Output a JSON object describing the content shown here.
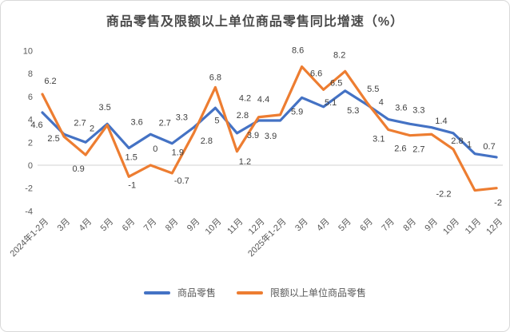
{
  "chart_data": {
    "type": "line",
    "title": "商品零售及限额以上单位商品零售同比增速（%）",
    "categories": [
      "2024年1-2月",
      "3月",
      "4月",
      "5月",
      "6月",
      "7月",
      "8月",
      "9月",
      "10月",
      "11月",
      "12月",
      "2025年1-2月",
      "3月",
      "4月",
      "5月",
      "6月",
      "7月",
      "8月",
      "9月",
      "10月",
      "11月",
      "12月"
    ],
    "series": [
      {
        "name": "商品零售",
        "color": "#4472C4",
        "values": [
          4.6,
          2.7,
          2,
          3.6,
          1.5,
          2.7,
          1.9,
          3.3,
          5,
          2.8,
          3.9,
          3.9,
          5.9,
          5.1,
          6.5,
          5.3,
          4,
          3.6,
          3.3,
          2.8,
          1,
          0.7
        ],
        "label_offsets": [
          [
            -7,
            19
          ],
          [
            20,
            -11
          ],
          [
            8,
            -14
          ],
          [
            37,
            1
          ],
          [
            3,
            15
          ],
          [
            18,
            -11
          ],
          [
            7,
            15
          ],
          [
            -15,
            -9
          ],
          [
            2,
            19
          ],
          [
            7,
            -19
          ],
          [
            -7,
            22
          ],
          [
            -12,
            23
          ],
          [
            -6,
            21
          ],
          [
            9,
            -2
          ],
          [
            -11,
            -6
          ],
          [
            -17,
            11
          ],
          [
            -9,
            -18
          ],
          [
            -11,
            -17
          ],
          [
            -16,
            -18
          ],
          [
            5,
            13
          ],
          [
            -7,
            -8
          ],
          [
            -9,
            -10
          ]
        ]
      },
      {
        "name": "限额以上单位商品零售",
        "color": "#ED7D31",
        "values": [
          6.2,
          2.5,
          0.9,
          3.5,
          -1,
          0,
          -0.7,
          2.8,
          6.8,
          1.2,
          4.2,
          4.4,
          8.6,
          6.6,
          8.2,
          5.5,
          3.1,
          2.6,
          2.7,
          1.4,
          -2.2,
          -2
        ],
        "label_offsets": [
          [
            10,
            -13
          ],
          [
            -13,
            6
          ],
          [
            -9,
            21
          ],
          [
            -3,
            -19
          ],
          [
            4,
            14
          ],
          [
            6,
            -17
          ],
          [
            12,
            13
          ],
          [
            16,
            13
          ],
          [
            0,
            -9
          ],
          [
            10,
            16
          ],
          [
            -17,
            -20
          ],
          [
            -21,
            -16
          ],
          [
            -5,
            -17
          ],
          [
            -9,
            -17
          ],
          [
            -7,
            -17
          ],
          [
            8,
            -13
          ],
          [
            -12,
            15
          ],
          [
            -12,
            20
          ],
          [
            -16,
            22
          ],
          [
            -15,
            -32
          ],
          [
            -39,
            8
          ],
          [
            2,
            22
          ]
        ]
      }
    ],
    "ylim": [
      -4,
      10
    ],
    "yticks": [
      10,
      8,
      6,
      4,
      2,
      0,
      -2,
      -4
    ],
    "grid": false,
    "zero_line": true,
    "data_labels": true,
    "legend_position": "bottom",
    "xlabel": "",
    "ylabel": ""
  },
  "style": {
    "axis_label_color": "#595959",
    "data_label_color": "#404040",
    "title_color": "#4a4a4a",
    "zero_line_color": "#D9D9D9",
    "border_color": "#D9D9D9",
    "background": "#ffffff"
  }
}
